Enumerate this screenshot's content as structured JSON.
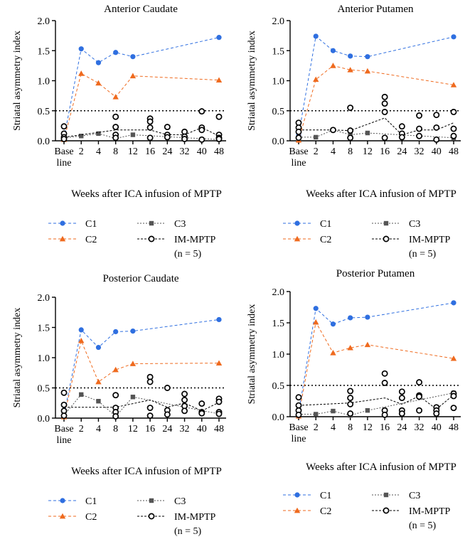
{
  "figure": {
    "shared_ylabel": "Striatal asymmetry index",
    "shared_xlabel": "Weeks after ICA infusion of MPTP",
    "x_tick_labels": [
      "Base line",
      "2",
      "4",
      "8",
      "12",
      "16",
      "24",
      "32",
      "40",
      "48"
    ],
    "y_tick_labels": [
      "0.0",
      "0.5",
      "1.0",
      "1.5",
      "2.0"
    ],
    "threshold": 0.5,
    "legend": {
      "c1": "C1",
      "c2": "C2",
      "c3": "C3",
      "im": "IM-MPTP",
      "im_n": "(n = 5)"
    },
    "colors": {
      "c1": "#2f6fe0",
      "c2": "#ef6a1e",
      "c3": "#555555",
      "im": "#000000"
    }
  },
  "chart_data": [
    {
      "type": "line",
      "title": "Anterior Caudate",
      "xlabel": "Weeks after ICA infusion of MPTP",
      "ylabel": "Striatal asymmetry index",
      "ylim": [
        0,
        2
      ],
      "categories": [
        "Base line",
        "2",
        "4",
        "8",
        "12",
        "16",
        "24",
        "32",
        "40",
        "48"
      ],
      "threshold": 0.5,
      "series": [
        {
          "name": "C1",
          "style": "circle",
          "points": [
            [
              0,
              0.05
            ],
            [
              1,
              1.53
            ],
            [
              2,
              1.3
            ],
            [
              3,
              1.47
            ],
            [
              4,
              1.4
            ],
            [
              9,
              1.72
            ]
          ]
        },
        {
          "name": "C2",
          "style": "triangle",
          "points": [
            [
              0,
              0.02
            ],
            [
              1,
              1.12
            ],
            [
              2,
              0.96
            ],
            [
              3,
              0.73
            ],
            [
              4,
              1.08
            ],
            [
              9,
              1.01
            ]
          ]
        },
        {
          "name": "C3",
          "style": "square",
          "points": [
            [
              0,
              0.05
            ],
            [
              1,
              0.08
            ],
            [
              2,
              0.12
            ],
            [
              3,
              0.04
            ],
            [
              4,
              0.1
            ],
            [
              9,
              0.02
            ]
          ]
        },
        {
          "name": "IM-MPTP",
          "style": "open-circle",
          "points": [
            [
              0,
              0.24
            ],
            [
              0,
              0.12
            ],
            [
              0,
              0.06
            ],
            [
              0,
              0.03
            ],
            [
              3,
              0.4
            ],
            [
              3,
              0.23
            ],
            [
              3,
              0.1
            ],
            [
              3,
              0.05
            ],
            [
              5,
              0.37
            ],
            [
              5,
              0.32
            ],
            [
              5,
              0.22
            ],
            [
              5,
              0.05
            ],
            [
              6,
              0.23
            ],
            [
              6,
              0.1
            ],
            [
              6,
              0.06
            ],
            [
              7,
              0.15
            ],
            [
              7,
              0.07
            ],
            [
              7,
              0.03
            ],
            [
              8,
              0.49
            ],
            [
              8,
              0.22
            ],
            [
              8,
              0.18
            ],
            [
              8,
              0.02
            ],
            [
              9,
              0.4
            ],
            [
              9,
              0.1
            ],
            [
              9,
              0.05
            ],
            [
              9,
              0.03
            ]
          ],
          "mean": [
            [
              0,
              0.06
            ],
            [
              3,
              0.18
            ],
            [
              4,
              0.18
            ],
            [
              5,
              0.18
            ],
            [
              6,
              0.1
            ],
            [
              7,
              0.1
            ],
            [
              8,
              0.22
            ],
            [
              9,
              0.08
            ]
          ]
        }
      ]
    },
    {
      "type": "line",
      "title": "Anterior Putamen",
      "xlabel": "Weeks after ICA infusion of MPTP",
      "ylabel": "Striatal asymmetry index",
      "ylim": [
        0,
        2
      ],
      "categories": [
        "Base line",
        "2",
        "4",
        "8",
        "12",
        "16",
        "24",
        "32",
        "40",
        "48"
      ],
      "threshold": 0.5,
      "series": [
        {
          "name": "C1",
          "style": "circle",
          "points": [
            [
              0,
              0.1
            ],
            [
              1,
              1.74
            ],
            [
              2,
              1.5
            ],
            [
              3,
              1.41
            ],
            [
              4,
              1.4
            ],
            [
              9,
              1.73
            ]
          ]
        },
        {
          "name": "C2",
          "style": "triangle",
          "points": [
            [
              0,
              0.01
            ],
            [
              1,
              1.02
            ],
            [
              2,
              1.25
            ],
            [
              3,
              1.18
            ],
            [
              4,
              1.16
            ],
            [
              9,
              0.93
            ]
          ]
        },
        {
          "name": "C3",
          "style": "square",
          "points": [
            [
              0,
              0.06
            ],
            [
              1,
              0.06
            ],
            [
              2,
              0.18
            ],
            [
              3,
              0.1
            ],
            [
              4,
              0.13
            ],
            [
              9,
              0.05
            ]
          ]
        },
        {
          "name": "IM-MPTP",
          "style": "open-circle",
          "points": [
            [
              0,
              0.3
            ],
            [
              0,
              0.22
            ],
            [
              0,
              0.15
            ],
            [
              0,
              0.05
            ],
            [
              2,
              0.18
            ],
            [
              3,
              0.55
            ],
            [
              3,
              0.17
            ],
            [
              3,
              0.05
            ],
            [
              5,
              0.73
            ],
            [
              5,
              0.62
            ],
            [
              5,
              0.48
            ],
            [
              5,
              0.05
            ],
            [
              6,
              0.24
            ],
            [
              6,
              0.12
            ],
            [
              6,
              0.06
            ],
            [
              7,
              0.42
            ],
            [
              7,
              0.2
            ],
            [
              7,
              0.08
            ],
            [
              8,
              0.43
            ],
            [
              8,
              0.22
            ],
            [
              8,
              0.02
            ],
            [
              9,
              0.48
            ],
            [
              9,
              0.2
            ],
            [
              9,
              0.08
            ]
          ],
          "mean": [
            [
              0,
              0.18
            ],
            [
              2,
              0.18
            ],
            [
              3,
              0.17
            ],
            [
              5,
              0.38
            ],
            [
              6,
              0.1
            ],
            [
              7,
              0.18
            ],
            [
              8,
              0.18
            ],
            [
              9,
              0.3
            ]
          ]
        }
      ]
    },
    {
      "type": "line",
      "title": "Posterior Caudate",
      "xlabel": "Weeks after ICA infusion of MPTP",
      "ylabel": "Striatal asymmetry index",
      "ylim": [
        0,
        2
      ],
      "categories": [
        "Base line",
        "2",
        "4",
        "8",
        "12",
        "16",
        "24",
        "32",
        "40",
        "48"
      ],
      "threshold": 0.5,
      "series": [
        {
          "name": "C1",
          "style": "circle",
          "points": [
            [
              0,
              0.05
            ],
            [
              1,
              1.46
            ],
            [
              2,
              1.17
            ],
            [
              3,
              1.43
            ],
            [
              4,
              1.44
            ],
            [
              9,
              1.63
            ]
          ]
        },
        {
          "name": "C2",
          "style": "triangle",
          "points": [
            [
              0,
              0.02
            ],
            [
              1,
              1.28
            ],
            [
              2,
              0.6
            ],
            [
              3,
              0.8
            ],
            [
              4,
              0.9
            ],
            [
              9,
              0.91
            ]
          ]
        },
        {
          "name": "C3",
          "style": "square",
          "points": [
            [
              0,
              0.05
            ],
            [
              1,
              0.39
            ],
            [
              2,
              0.28
            ],
            [
              3,
              0.03
            ],
            [
              4,
              0.35
            ],
            [
              9,
              0.07
            ]
          ]
        },
        {
          "name": "IM-MPTP",
          "style": "open-circle",
          "points": [
            [
              0,
              0.42
            ],
            [
              0,
              0.22
            ],
            [
              0,
              0.12
            ],
            [
              0,
              0.04
            ],
            [
              3,
              0.38
            ],
            [
              3,
              0.17
            ],
            [
              3,
              0.1
            ],
            [
              3,
              0.03
            ],
            [
              5,
              0.68
            ],
            [
              5,
              0.6
            ],
            [
              5,
              0.17
            ],
            [
              5,
              0.04
            ],
            [
              6,
              0.5
            ],
            [
              6,
              0.13
            ],
            [
              6,
              0.06
            ],
            [
              7,
              0.4
            ],
            [
              7,
              0.3
            ],
            [
              7,
              0.2
            ],
            [
              7,
              0.12
            ],
            [
              8,
              0.24
            ],
            [
              8,
              0.1
            ],
            [
              8,
              0.08
            ],
            [
              9,
              0.32
            ],
            [
              9,
              0.27
            ],
            [
              9,
              0.1
            ],
            [
              9,
              0.07
            ]
          ],
          "mean": [
            [
              0,
              0.18
            ],
            [
              3,
              0.18
            ],
            [
              5,
              0.3
            ],
            [
              6,
              0.18
            ],
            [
              7,
              0.25
            ],
            [
              8,
              0.12
            ],
            [
              9,
              0.26
            ]
          ]
        }
      ]
    },
    {
      "type": "line",
      "title": "Posterior Putamen",
      "xlabel": "Weeks after ICA infusion of MPTP",
      "ylabel": "Striatal asymmetry index",
      "ylim": [
        0,
        2
      ],
      "categories": [
        "Base line",
        "2",
        "4",
        "8",
        "12",
        "16",
        "24",
        "32",
        "40",
        "48"
      ],
      "threshold": 0.5,
      "series": [
        {
          "name": "C1",
          "style": "circle",
          "points": [
            [
              0,
              0.06
            ],
            [
              1,
              1.73
            ],
            [
              2,
              1.48
            ],
            [
              3,
              1.58
            ],
            [
              4,
              1.59
            ],
            [
              9,
              1.82
            ]
          ]
        },
        {
          "name": "C2",
          "style": "triangle",
          "points": [
            [
              0,
              0.01
            ],
            [
              1,
              1.51
            ],
            [
              2,
              1.02
            ],
            [
              3,
              1.1
            ],
            [
              4,
              1.15
            ],
            [
              9,
              0.93
            ]
          ]
        },
        {
          "name": "C3",
          "style": "square",
          "points": [
            [
              0,
              0.04
            ],
            [
              1,
              0.04
            ],
            [
              2,
              0.09
            ],
            [
              3,
              0.02
            ],
            [
              4,
              0.1
            ],
            [
              9,
              0.38
            ]
          ]
        },
        {
          "name": "IM-MPTP",
          "style": "open-circle",
          "points": [
            [
              0,
              0.31
            ],
            [
              0,
              0.18
            ],
            [
              0,
              0.1
            ],
            [
              0,
              0.03
            ],
            [
              3,
              0.41
            ],
            [
              3,
              0.3
            ],
            [
              3,
              0.2
            ],
            [
              3,
              0.05
            ],
            [
              5,
              0.69
            ],
            [
              5,
              0.54
            ],
            [
              5,
              0.1
            ],
            [
              5,
              0.03
            ],
            [
              6,
              0.4
            ],
            [
              6,
              0.3
            ],
            [
              6,
              0.1
            ],
            [
              6,
              0.05
            ],
            [
              7,
              0.55
            ],
            [
              7,
              0.34
            ],
            [
              7,
              0.32
            ],
            [
              7,
              0.1
            ],
            [
              8,
              0.15
            ],
            [
              8,
              0.1
            ],
            [
              8,
              0.05
            ],
            [
              9,
              0.37
            ],
            [
              9,
              0.33
            ],
            [
              9,
              0.14
            ]
          ],
          "mean": [
            [
              0,
              0.18
            ],
            [
              3,
              0.22
            ],
            [
              5,
              0.3
            ],
            [
              6,
              0.2
            ],
            [
              7,
              0.33
            ],
            [
              8,
              0.12
            ],
            [
              9,
              0.35
            ]
          ]
        }
      ]
    }
  ]
}
